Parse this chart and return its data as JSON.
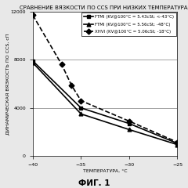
{
  "title": "СРАВНЕНИЕ ВЯЗКОСТИ ПО CCS ПРИ НИЗКИХ ТЕМПЕРАТУРАХ",
  "xlabel": "ТЕМПЕРАТУРА, °С",
  "ylabel": "ДИНАМИЧЕСКАЯ ВЯЗКОСТЬ ПО CCS, сП",
  "fig_label": "ФИГ. 1",
  "xlim": [
    -40,
    -25
  ],
  "ylim": [
    0,
    12000
  ],
  "xticks": [
    -40,
    -35,
    -30,
    -25
  ],
  "yticks": [
    0,
    4000,
    8000,
    12000
  ],
  "series": [
    {
      "label": "FTMI (KV@100°C = 5.43cSt; <-43°C)",
      "x": [
        -40,
        -35,
        -30,
        -25
      ],
      "y": [
        7900,
        4000,
        2700,
        1050
      ],
      "color": "black",
      "linestyle": "-",
      "marker": "s",
      "linewidth": 1.2,
      "markersize": 3.5
    },
    {
      "label": "FTMI (KV@100°C = 5.56cSt; -48°C)",
      "x": [
        -40,
        -35,
        -30,
        -25
      ],
      "y": [
        7750,
        3500,
        2200,
        950
      ],
      "color": "black",
      "linestyle": "-",
      "marker": "^",
      "linewidth": 1.2,
      "markersize": 3.5
    },
    {
      "label": "XHVI (KV@100°C = 5.06cSt; -18°C)",
      "x": [
        -40,
        -37,
        -36,
        -35,
        -30,
        -25
      ],
      "y": [
        11700,
        7600,
        5900,
        4600,
        2900,
        1150
      ],
      "color": "black",
      "linestyle": "--",
      "marker": "D",
      "linewidth": 1.2,
      "markersize": 3.5
    }
  ],
  "hlines": [
    4000,
    8000
  ],
  "background_color": "#e8e8e8",
  "plot_bg": "#ffffff",
  "legend_fontsize": 4.0,
  "title_fontsize": 5.0,
  "axis_fontsize": 4.5,
  "tick_fontsize": 4.5,
  "fig_label_fontsize": 7.5
}
